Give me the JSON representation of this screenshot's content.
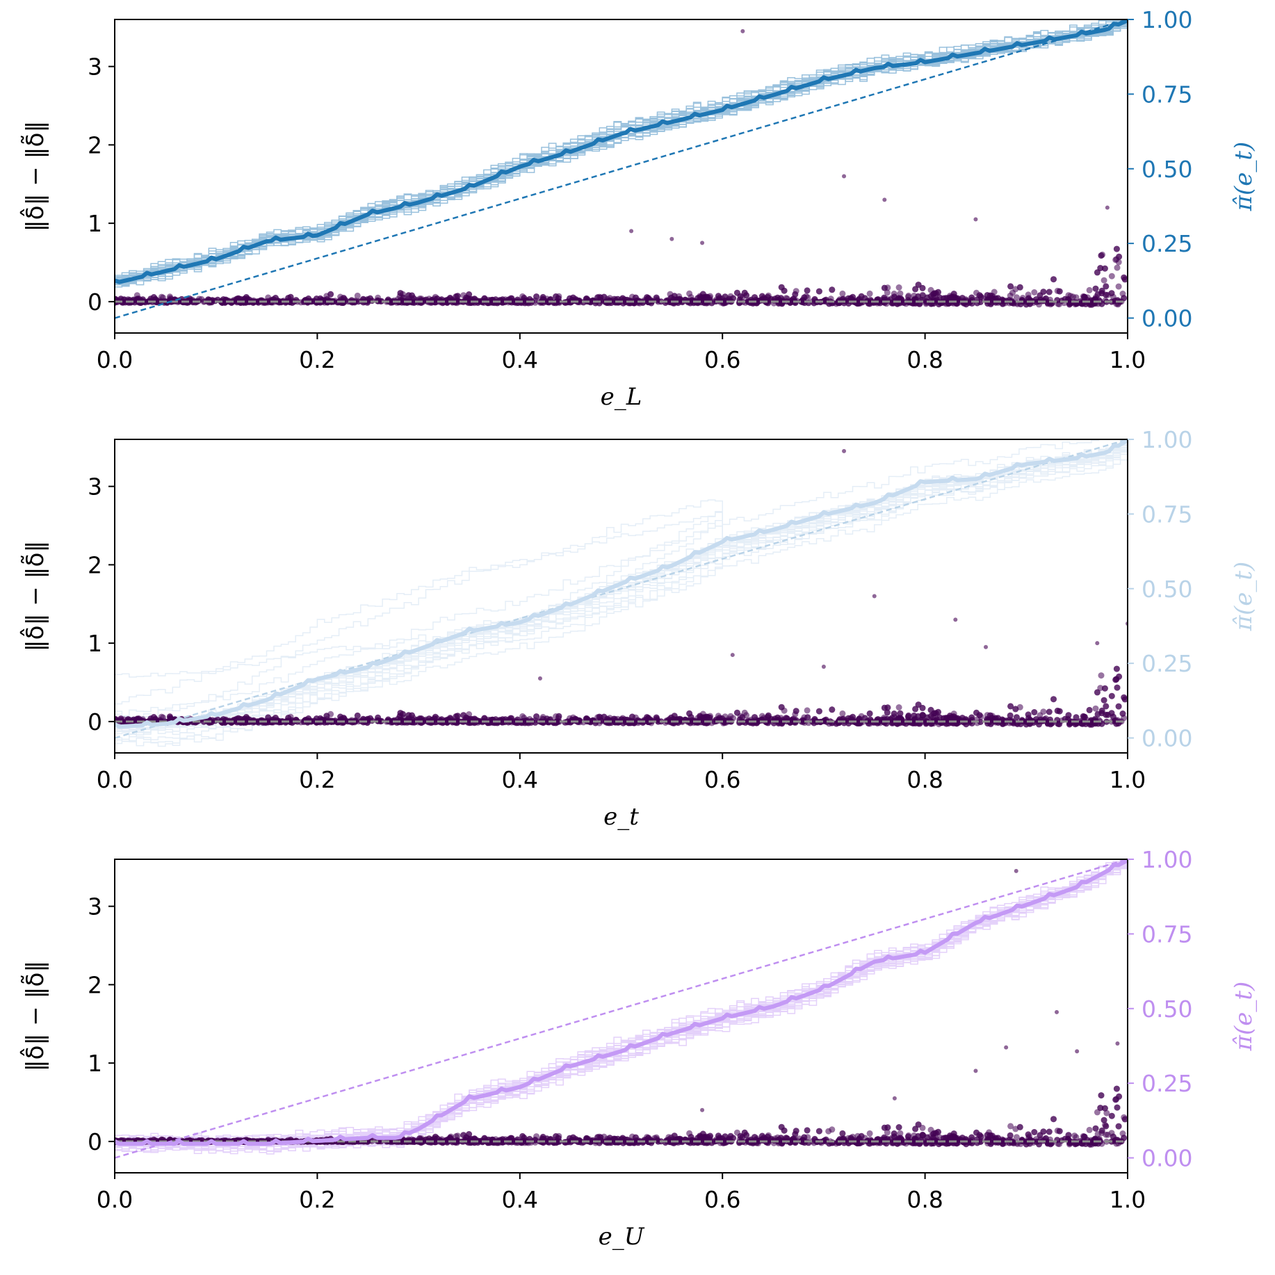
{
  "chart_data": [
    {
      "type": "scatter",
      "xlabel": "e_L",
      "ylabel": "‖δ̂‖ − ‖δ̃‖",
      "y2label": "π̂(e_t)",
      "xlim": [
        0.0,
        1.0
      ],
      "ylim": [
        -0.4,
        3.6
      ],
      "y2lim": [
        -0.05,
        1.0
      ],
      "xticks": [
        "0.0",
        "0.2",
        "0.4",
        "0.6",
        "0.8",
        "1.0"
      ],
      "yticks": [
        "0",
        "1",
        "2",
        "3"
      ],
      "y2ticks": [
        "0.00",
        "0.25",
        "0.50",
        "0.75",
        "1.00"
      ],
      "accent_color": "#1f77b4",
      "curve_color": "#1f77b4",
      "scatter_color": "#440154",
      "reference_line": {
        "x": [
          0.0,
          1.0
        ],
        "y2": [
          0.0,
          1.0
        ]
      },
      "zero_line": {
        "y": 0
      },
      "mean_curve": {
        "x": [
          0.0,
          0.05,
          0.1,
          0.15,
          0.2,
          0.25,
          0.3,
          0.35,
          0.4,
          0.45,
          0.5,
          0.55,
          0.6,
          0.65,
          0.7,
          0.75,
          0.8,
          0.85,
          0.9,
          0.95,
          0.98,
          1.0
        ],
        "y2": [
          0.12,
          0.16,
          0.2,
          0.26,
          0.28,
          0.35,
          0.39,
          0.44,
          0.51,
          0.56,
          0.62,
          0.66,
          0.7,
          0.75,
          0.8,
          0.84,
          0.86,
          0.89,
          0.92,
          0.95,
          0.97,
          1.0
        ]
      },
      "outliers": [
        {
          "x": 0.51,
          "y": 0.9
        },
        {
          "x": 0.55,
          "y": 0.8
        },
        {
          "x": 0.58,
          "y": 0.75
        },
        {
          "x": 0.62,
          "y": 3.45
        },
        {
          "x": 0.72,
          "y": 1.6
        },
        {
          "x": 0.76,
          "y": 1.3
        },
        {
          "x": 0.85,
          "y": 1.05
        },
        {
          "x": 0.98,
          "y": 1.2
        }
      ]
    },
    {
      "type": "scatter",
      "xlabel": "e_t",
      "ylabel": "‖δ̂‖ − ‖δ̃‖",
      "y2label": "π̂(e_t)",
      "xlim": [
        0.0,
        1.0
      ],
      "ylim": [
        -0.4,
        3.6
      ],
      "y2lim": [
        -0.05,
        1.0
      ],
      "xticks": [
        "0.0",
        "0.2",
        "0.4",
        "0.6",
        "0.8",
        "1.0"
      ],
      "yticks": [
        "0",
        "1",
        "2",
        "3"
      ],
      "y2ticks": [
        "0.00",
        "0.25",
        "0.50",
        "0.75",
        "1.00"
      ],
      "accent_color": "#b9d3e8",
      "curve_color": "#c6dbef",
      "scatter_color": "#440154",
      "reference_line": {
        "x": [
          0.0,
          1.0
        ],
        "y2": [
          0.0,
          1.0
        ]
      },
      "zero_line": {
        "y": 0
      },
      "mean_curve": {
        "x": [
          0.0,
          0.05,
          0.1,
          0.15,
          0.2,
          0.25,
          0.3,
          0.35,
          0.4,
          0.45,
          0.5,
          0.55,
          0.6,
          0.65,
          0.7,
          0.75,
          0.8,
          0.85,
          0.9,
          0.95,
          0.98,
          1.0
        ],
        "y2": [
          0.04,
          0.05,
          0.08,
          0.13,
          0.2,
          0.24,
          0.3,
          0.36,
          0.39,
          0.45,
          0.52,
          0.58,
          0.66,
          0.7,
          0.75,
          0.79,
          0.86,
          0.87,
          0.92,
          0.94,
          0.96,
          1.0
        ]
      },
      "outliers": [
        {
          "x": 0.42,
          "y": 0.55
        },
        {
          "x": 0.61,
          "y": 0.85
        },
        {
          "x": 0.7,
          "y": 0.7
        },
        {
          "x": 0.72,
          "y": 3.45
        },
        {
          "x": 0.75,
          "y": 1.6
        },
        {
          "x": 0.83,
          "y": 1.3
        },
        {
          "x": 0.86,
          "y": 0.95
        },
        {
          "x": 0.97,
          "y": 1.0
        },
        {
          "x": 1.0,
          "y": 1.25
        }
      ]
    },
    {
      "type": "scatter",
      "xlabel": "e_U",
      "ylabel": "‖δ̂‖ − ‖δ̃‖",
      "y2label": "π̂(e_t)",
      "xlim": [
        0.0,
        1.0
      ],
      "ylim": [
        -0.4,
        3.6
      ],
      "y2lim": [
        -0.05,
        1.0
      ],
      "xticks": [
        "0.0",
        "0.2",
        "0.4",
        "0.6",
        "0.8",
        "1.0"
      ],
      "yticks": [
        "0",
        "1",
        "2",
        "3"
      ],
      "y2ticks": [
        "0.00",
        "0.25",
        "0.50",
        "0.75",
        "1.00"
      ],
      "accent_color": "#bf8ff0",
      "curve_color": "#c49af5",
      "scatter_color": "#440154",
      "reference_line": {
        "x": [
          0.0,
          1.0
        ],
        "y2": [
          0.0,
          1.0
        ]
      },
      "zero_line": {
        "y": 0
      },
      "mean_curve": {
        "x": [
          0.0,
          0.05,
          0.1,
          0.15,
          0.2,
          0.25,
          0.28,
          0.3,
          0.35,
          0.4,
          0.45,
          0.5,
          0.55,
          0.6,
          0.65,
          0.7,
          0.75,
          0.8,
          0.85,
          0.9,
          0.95,
          1.0
        ],
        "y2": [
          0.05,
          0.05,
          0.05,
          0.05,
          0.06,
          0.07,
          0.07,
          0.1,
          0.2,
          0.24,
          0.31,
          0.36,
          0.42,
          0.47,
          0.51,
          0.57,
          0.66,
          0.69,
          0.79,
          0.85,
          0.91,
          1.0
        ]
      },
      "outliers": [
        {
          "x": 0.58,
          "y": 0.4
        },
        {
          "x": 0.77,
          "y": 0.55
        },
        {
          "x": 0.85,
          "y": 0.9
        },
        {
          "x": 0.88,
          "y": 1.2
        },
        {
          "x": 0.89,
          "y": 3.45
        },
        {
          "x": 0.93,
          "y": 1.65
        },
        {
          "x": 0.95,
          "y": 1.15
        },
        {
          "x": 0.99,
          "y": 1.25
        }
      ]
    }
  ]
}
